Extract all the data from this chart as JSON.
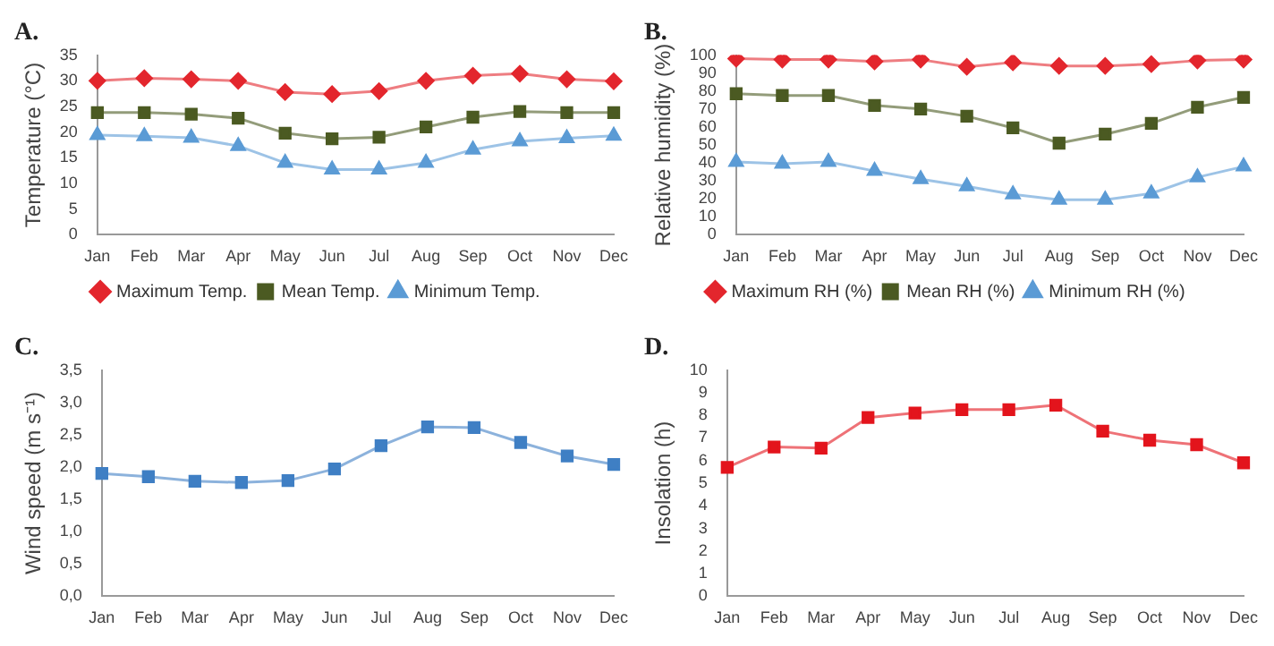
{
  "chart_data": [
    {
      "type": "line",
      "title": "A.",
      "ylabel": "Temperature (°C)",
      "categories": [
        "Jan",
        "Feb",
        "Mar",
        "Apr",
        "May",
        "Jun",
        "Jul",
        "Aug",
        "Sep",
        "Oct",
        "Nov",
        "Dec"
      ],
      "ylim": [
        0,
        35
      ],
      "yticks": [
        0,
        5,
        10,
        15,
        20,
        25,
        30,
        35
      ],
      "grid": false,
      "legend": "bottom",
      "series": [
        {
          "name": "Maximum Temp.",
          "color": "#e3262d",
          "marker": "diamond",
          "values": [
            30,
            30.5,
            30.3,
            30,
            27.8,
            27.4,
            28,
            30,
            31,
            31.4,
            30.3,
            29.9
          ]
        },
        {
          "name": "Mean Temp.",
          "color": "#4b5a22",
          "marker": "square",
          "values": [
            23.8,
            23.8,
            23.5,
            22.7,
            19.8,
            18.7,
            19,
            21,
            22.9,
            24,
            23.8,
            23.8
          ]
        },
        {
          "name": "Minimum Temp.",
          "color": "#5b9bd5",
          "marker": "triangle",
          "values": [
            19.4,
            19.2,
            18.9,
            17.3,
            14,
            12.7,
            12.7,
            14,
            16.6,
            18.2,
            18.8,
            19.3
          ]
        }
      ]
    },
    {
      "type": "line",
      "title": "B.",
      "ylabel": "Relative humidity (%)",
      "categories": [
        "Jan",
        "Feb",
        "Mar",
        "Apr",
        "May",
        "Jun",
        "Jul",
        "Aug",
        "Sep",
        "Oct",
        "Nov",
        "Dec"
      ],
      "ylim": [
        0,
        100
      ],
      "yticks": [
        0,
        10,
        20,
        30,
        40,
        50,
        60,
        70,
        80,
        90,
        100
      ],
      "grid": false,
      "legend": "bottom",
      "series": [
        {
          "name": "Maximum RH (%)",
          "color": "#e3262d",
          "marker": "diamond",
          "values": [
            98,
            97.5,
            97.5,
            96.5,
            97.5,
            93.5,
            96,
            94,
            94,
            95,
            97,
            97.5
          ]
        },
        {
          "name": "Mean RH (%)",
          "color": "#4b5a22",
          "marker": "square",
          "values": [
            78.5,
            77.5,
            77.5,
            72,
            70,
            66,
            59.5,
            51,
            56,
            62,
            71,
            76.5
          ]
        },
        {
          "name": "Minimum RH (%)",
          "color": "#5b9bd5",
          "marker": "triangle",
          "values": [
            40.5,
            39.5,
            40.5,
            35.5,
            31,
            27,
            22.5,
            19.5,
            19.5,
            23,
            32,
            38
          ]
        }
      ]
    },
    {
      "type": "line",
      "title": "C.",
      "ylabel": "Wind speed (m s⁻¹)",
      "categories": [
        "Jan",
        "Feb",
        "Mar",
        "Apr",
        "May",
        "Jun",
        "Jul",
        "Aug",
        "Sep",
        "Oct",
        "Nov",
        "Dec"
      ],
      "ylim": [
        0,
        3.5
      ],
      "yticks": [
        {
          "value": 0,
          "label": "0,0"
        },
        {
          "value": 0.5,
          "label": "0,5"
        },
        {
          "value": 1,
          "label": "1,0"
        },
        {
          "value": 1.5,
          "label": "1,5"
        },
        {
          "value": 2,
          "label": "2,0"
        },
        {
          "value": 2.5,
          "label": "2,5"
        },
        {
          "value": 3,
          "label": "3,0"
        },
        {
          "value": 3.5,
          "label": "3,5"
        }
      ],
      "grid": false,
      "legend": false,
      "series": [
        {
          "color": "#3f7fc4",
          "marker": "square",
          "values": [
            1.9,
            1.85,
            1.78,
            1.76,
            1.79,
            1.97,
            2.33,
            2.62,
            2.61,
            2.38,
            2.17,
            2.04
          ]
        }
      ]
    },
    {
      "type": "line",
      "title": "D.",
      "ylabel": "Insolation (h)",
      "categories": [
        "Jan",
        "Feb",
        "Mar",
        "Apr",
        "May",
        "Jun",
        "Jul",
        "Aug",
        "Sep",
        "Oct",
        "Nov",
        "Dec"
      ],
      "ylim": [
        0,
        10
      ],
      "yticks": [
        0,
        1,
        2,
        3,
        4,
        5,
        6,
        7,
        8,
        9,
        10
      ],
      "grid": false,
      "legend": false,
      "series": [
        {
          "color": "#e3141c",
          "marker": "square",
          "values": [
            5.7,
            6.6,
            6.55,
            7.9,
            8.1,
            8.25,
            8.25,
            8.45,
            7.3,
            6.9,
            6.7,
            5.9
          ]
        }
      ]
    }
  ]
}
